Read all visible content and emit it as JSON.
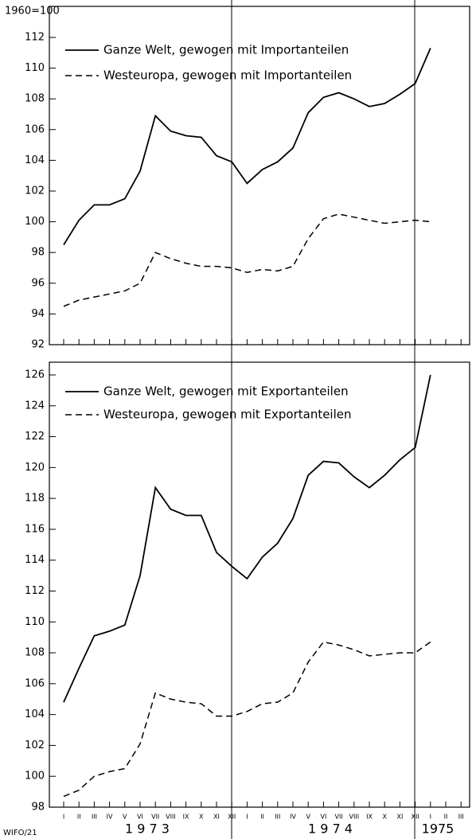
{
  "source": "WIFO/21",
  "chart_data": [
    {
      "type": "line",
      "y_label": "1960=100",
      "ylim": [
        92,
        112
      ],
      "yticks": [
        92,
        94,
        96,
        98,
        100,
        102,
        104,
        106,
        108,
        110,
        112
      ],
      "series": [
        {
          "name": "Ganze Welt, gewogen mit Importanteilen",
          "color": "#000000",
          "dash": false,
          "values": [
            98.5,
            100.1,
            101.1,
            101.1,
            101.5,
            103.3,
            106.9,
            105.9,
            105.6,
            105.5,
            104.3,
            103.9,
            102.5,
            103.4,
            103.9,
            104.8,
            107.1,
            108.1,
            108.4,
            108.0,
            107.5,
            107.7,
            108.3,
            109.0,
            111.3,
            null,
            null
          ]
        },
        {
          "name": "Westeuropa, gewogen mit Importanteilen",
          "color": "#000000",
          "dash": true,
          "values": [
            94.5,
            94.9,
            95.1,
            95.3,
            95.5,
            96.0,
            98.0,
            97.6,
            97.3,
            97.1,
            97.1,
            97.0,
            96.7,
            96.9,
            96.8,
            97.1,
            98.9,
            100.2,
            100.5,
            100.3,
            100.1,
            99.9,
            100.0,
            100.1,
            100.0,
            null,
            null
          ]
        }
      ]
    },
    {
      "type": "line",
      "categories": [
        "I",
        "II",
        "III",
        "IV",
        "V",
        "VI",
        "VII",
        "VIII",
        "IX",
        "X",
        "XI",
        "XII",
        "I",
        "II",
        "III",
        "IV",
        "V",
        "VI",
        "VII",
        "VIII",
        "IX",
        "X",
        "XI",
        "XII",
        "I",
        "II",
        "III"
      ],
      "year_labels": [
        "1 9 7 3",
        "1 9 7 4",
        "1975"
      ],
      "ylim": [
        98,
        126
      ],
      "yticks": [
        98,
        100,
        102,
        104,
        106,
        108,
        110,
        112,
        114,
        116,
        118,
        120,
        122,
        124,
        126
      ],
      "series": [
        {
          "name": "Ganze Welt, gewogen mit Exportanteilen",
          "color": "#000000",
          "dash": false,
          "values": [
            104.8,
            107.0,
            109.1,
            109.4,
            109.8,
            113.0,
            118.7,
            117.3,
            116.9,
            116.9,
            114.5,
            113.6,
            112.8,
            114.2,
            115.1,
            116.7,
            119.5,
            120.4,
            120.3,
            119.4,
            118.7,
            119.5,
            120.5,
            121.3,
            126.0,
            null,
            null
          ]
        },
        {
          "name": "Westeuropa, gewogen mit Exportanteilen",
          "color": "#000000",
          "dash": true,
          "values": [
            98.7,
            99.1,
            100.0,
            100.3,
            100.5,
            102.1,
            105.4,
            105.0,
            104.8,
            104.7,
            103.9,
            103.9,
            104.2,
            104.7,
            104.8,
            105.4,
            107.4,
            108.7,
            108.5,
            108.2,
            107.8,
            107.9,
            108.0,
            108.0,
            108.7,
            null,
            null
          ]
        }
      ]
    }
  ]
}
